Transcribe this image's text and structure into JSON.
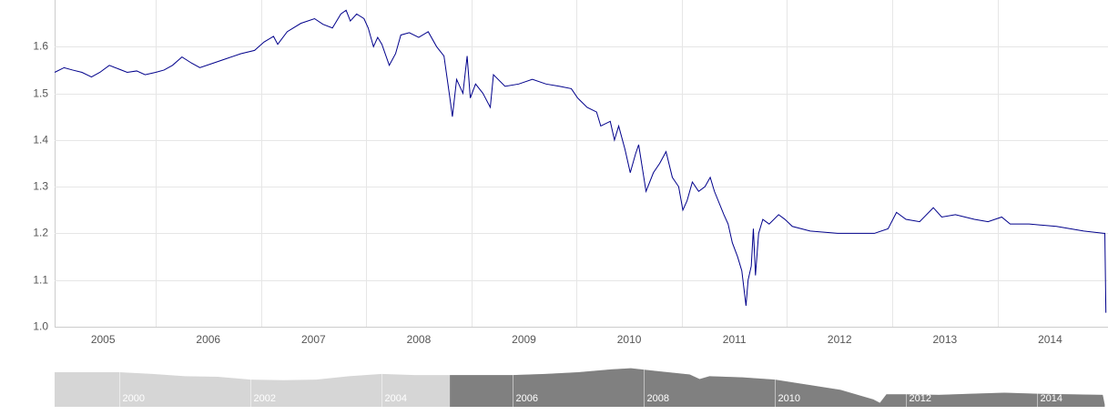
{
  "chart_data": [
    {
      "type": "line",
      "x": [
        2005.04,
        2005.13,
        2005.21,
        2005.3,
        2005.39,
        2005.47,
        2005.56,
        2005.65,
        2005.73,
        2005.82,
        2005.9,
        2006.0,
        2006.08,
        2006.16,
        2006.25,
        2006.34,
        2006.42,
        2006.55,
        2006.68,
        2006.81,
        2006.94,
        2007.03,
        2007.12,
        2007.16,
        2007.25,
        2007.38,
        2007.51,
        2007.59,
        2007.68,
        2007.76,
        2007.81,
        2007.85,
        2007.91,
        2007.98,
        2008.02,
        2008.07,
        2008.11,
        2008.15,
        2008.22,
        2008.28,
        2008.33,
        2008.41,
        2008.5,
        2008.59,
        2008.67,
        2008.74,
        2008.79,
        2008.82,
        2008.86,
        2008.92,
        2008.96,
        2008.99,
        2009.04,
        2009.11,
        2009.18,
        2009.21,
        2009.32,
        2009.45,
        2009.58,
        2009.71,
        2009.84,
        2009.95,
        2010.01,
        2010.1,
        2010.19,
        2010.23,
        2010.32,
        2010.36,
        2010.4,
        2010.46,
        2010.51,
        2010.56,
        2010.59,
        2010.66,
        2010.73,
        2010.79,
        2010.85,
        2010.91,
        2010.97,
        2011.01,
        2011.05,
        2011.1,
        2011.16,
        2011.22,
        2011.27,
        2011.31,
        2011.4,
        2011.44,
        2011.48,
        2011.53,
        2011.57,
        2011.61,
        2011.63,
        2011.66,
        2011.68,
        2011.7,
        2011.73,
        2011.77,
        2011.83,
        2011.92,
        2011.98,
        2012.05,
        2012.22,
        2012.48,
        2012.83,
        2012.96,
        2013.04,
        2013.13,
        2013.26,
        2013.39,
        2013.47,
        2013.6,
        2013.78,
        2013.91,
        2014.04,
        2014.12,
        2014.3,
        2014.56,
        2014.82,
        2015.01,
        2015.02,
        2015.03
      ],
      "values": [
        1.545,
        1.555,
        1.55,
        1.545,
        1.535,
        1.545,
        1.56,
        1.552,
        1.545,
        1.548,
        1.54,
        1.545,
        1.55,
        1.56,
        1.578,
        1.565,
        1.555,
        1.565,
        1.575,
        1.585,
        1.592,
        1.61,
        1.622,
        1.605,
        1.632,
        1.65,
        1.66,
        1.648,
        1.64,
        1.67,
        1.678,
        1.655,
        1.67,
        1.66,
        1.64,
        1.6,
        1.62,
        1.605,
        1.56,
        1.585,
        1.625,
        1.63,
        1.62,
        1.632,
        1.6,
        1.58,
        1.5,
        1.45,
        1.53,
        1.5,
        1.58,
        1.49,
        1.52,
        1.5,
        1.47,
        1.54,
        1.515,
        1.52,
        1.53,
        1.52,
        1.515,
        1.51,
        1.49,
        1.47,
        1.46,
        1.43,
        1.44,
        1.4,
        1.43,
        1.38,
        1.33,
        1.37,
        1.39,
        1.29,
        1.33,
        1.35,
        1.375,
        1.32,
        1.3,
        1.25,
        1.27,
        1.31,
        1.29,
        1.3,
        1.32,
        1.29,
        1.24,
        1.22,
        1.18,
        1.15,
        1.12,
        1.045,
        1.1,
        1.13,
        1.21,
        1.11,
        1.2,
        1.23,
        1.22,
        1.24,
        1.23,
        1.215,
        1.205,
        1.2,
        1.2,
        1.21,
        1.245,
        1.23,
        1.225,
        1.255,
        1.235,
        1.24,
        1.23,
        1.225,
        1.235,
        1.22,
        1.22,
        1.215,
        1.205,
        1.2,
        1.2,
        1.03
      ],
      "color": "#00008b",
      "xlim": [
        2005.04,
        2015.05
      ],
      "ylim": [
        1.0,
        1.7
      ],
      "xticks": [
        2005,
        2006,
        2007,
        2008,
        2009,
        2010,
        2011,
        2012,
        2013,
        2014
      ],
      "yticks": [
        {
          "value": 1.0,
          "label": "1.0"
        },
        1.1,
        1.2,
        1.3,
        1.4,
        1.5,
        1.6
      ],
      "grid": true
    },
    {
      "type": "area",
      "x": [
        1999.01,
        1999.5,
        2000.0,
        2000.5,
        2001.0,
        2001.5,
        2002.0,
        2002.5,
        2003.0,
        2003.5,
        2004.0,
        2004.5,
        2005.0,
        2005.5,
        2006.0,
        2006.5,
        2007.0,
        2007.5,
        2007.8,
        2008.2,
        2008.7,
        2008.85,
        2009.0,
        2009.5,
        2010.0,
        2010.5,
        2011.0,
        2011.5,
        2011.6,
        2011.7,
        2012.0,
        2012.5,
        2013.0,
        2013.5,
        2014.0,
        2014.5,
        2015.0,
        2015.03
      ],
      "values": [
        1.6,
        1.6,
        1.6,
        1.57,
        1.53,
        1.52,
        1.47,
        1.46,
        1.47,
        1.53,
        1.57,
        1.55,
        1.55,
        1.55,
        1.55,
        1.57,
        1.6,
        1.65,
        1.67,
        1.62,
        1.56,
        1.48,
        1.53,
        1.51,
        1.47,
        1.38,
        1.29,
        1.12,
        1.06,
        1.21,
        1.21,
        1.2,
        1.22,
        1.24,
        1.22,
        1.21,
        1.2,
        1.03
      ],
      "color": "#808080",
      "unselected_color": "#d6d6d6",
      "xlim": [
        1999.01,
        2015.08
      ],
      "ylim": [
        0.99,
        1.97
      ],
      "xticks": [
        2000,
        2002,
        2004,
        2006,
        2008,
        2010,
        2012,
        2014
      ]
    }
  ]
}
